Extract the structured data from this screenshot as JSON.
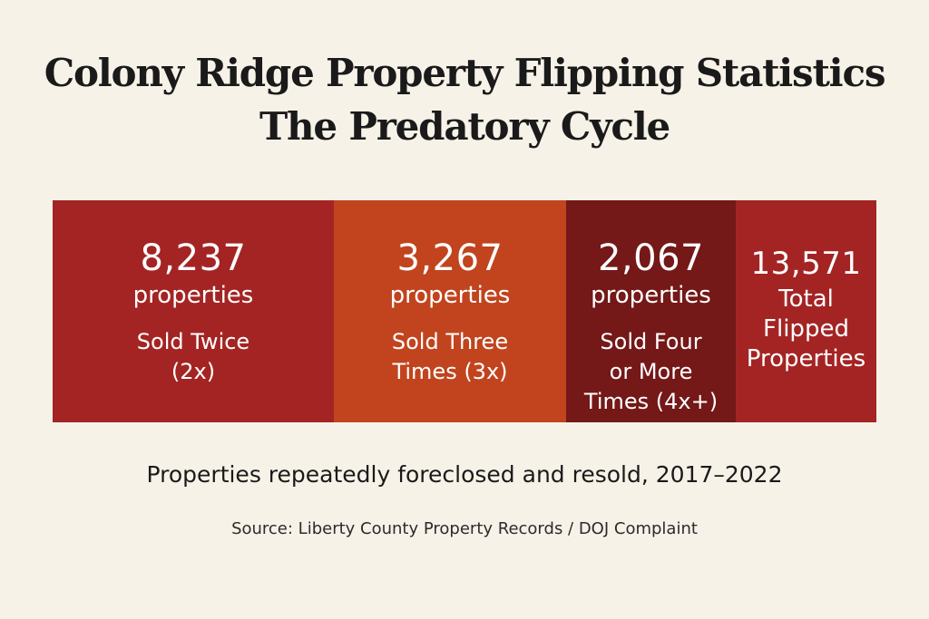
{
  "colors": {
    "background": "#f7f2e8",
    "text": "#1a1a1a",
    "muted_text": "#2b2b2b"
  },
  "chart_data": {
    "type": "bar",
    "title": "Colony Ridge Property Flipping Statistics",
    "subtitle": "The Predatory Cycle",
    "caption": "Properties repeatedly foreclosed and resold, 2017–2022",
    "source": "Source: Liberty County Property Records / DOJ Complaint",
    "unit": "properties",
    "categories": [
      "Sold Twice (2x)",
      "Sold Three Times (3x)",
      "Sold Four or More Times (4x+)"
    ],
    "values": [
      8237,
      3267,
      2067
    ],
    "blocks": [
      {
        "value": "8,237",
        "unit": "properties",
        "desc_lines": [
          "Sold Twice",
          "(2x)"
        ],
        "color": "#a42424"
      },
      {
        "value": "3,267",
        "unit": "properties",
        "desc_lines": [
          "Sold Three",
          "Times (3x)"
        ],
        "color": "#c1441e"
      },
      {
        "value": "2,067",
        "unit": "properties",
        "desc_lines": [
          "Sold Four",
          "or More",
          "Times (4x+)"
        ],
        "color": "#741818"
      }
    ],
    "total": {
      "value": "13,571",
      "total_value": 13571,
      "desc_lines": [
        "Total",
        "Flipped",
        "Properties"
      ],
      "color": "#a42424"
    }
  }
}
